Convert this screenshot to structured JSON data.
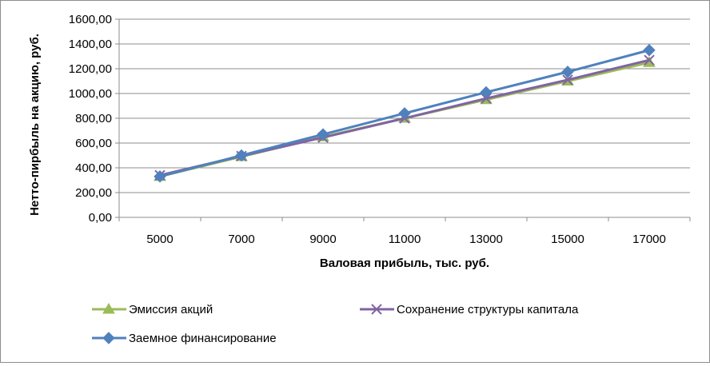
{
  "chart_data": {
    "type": "line",
    "title": "",
    "xlabel": "Валовая прибыль, тыс. руб.",
    "ylabel": "Нетто-пирбыль на акцию, руб.",
    "categories": [
      "5000",
      "7000",
      "9000",
      "11000",
      "13000",
      "15000",
      "17000"
    ],
    "ylim": [
      0,
      1600
    ],
    "yticks": [
      "0,00",
      "200,00",
      "400,00",
      "600,00",
      "800,00",
      "1000,00",
      "1200,00",
      "1400,00",
      "1600,00"
    ],
    "grid": true,
    "legend_position": "bottom",
    "series": [
      {
        "name": "Эмиссия акций",
        "marker": "triangle",
        "color": "#9bbb59",
        "values": [
          330,
          490,
          650,
          800,
          950,
          1100,
          1250
        ]
      },
      {
        "name": "Сохранение структуры капитала",
        "marker": "x",
        "color": "#8064a2",
        "values": [
          340,
          495,
          645,
          800,
          960,
          1110,
          1270
        ]
      },
      {
        "name": "Заемное финансирование",
        "marker": "diamond",
        "color": "#4f81bd",
        "values": [
          330,
          500,
          670,
          840,
          1010,
          1175,
          1350
        ]
      }
    ]
  }
}
